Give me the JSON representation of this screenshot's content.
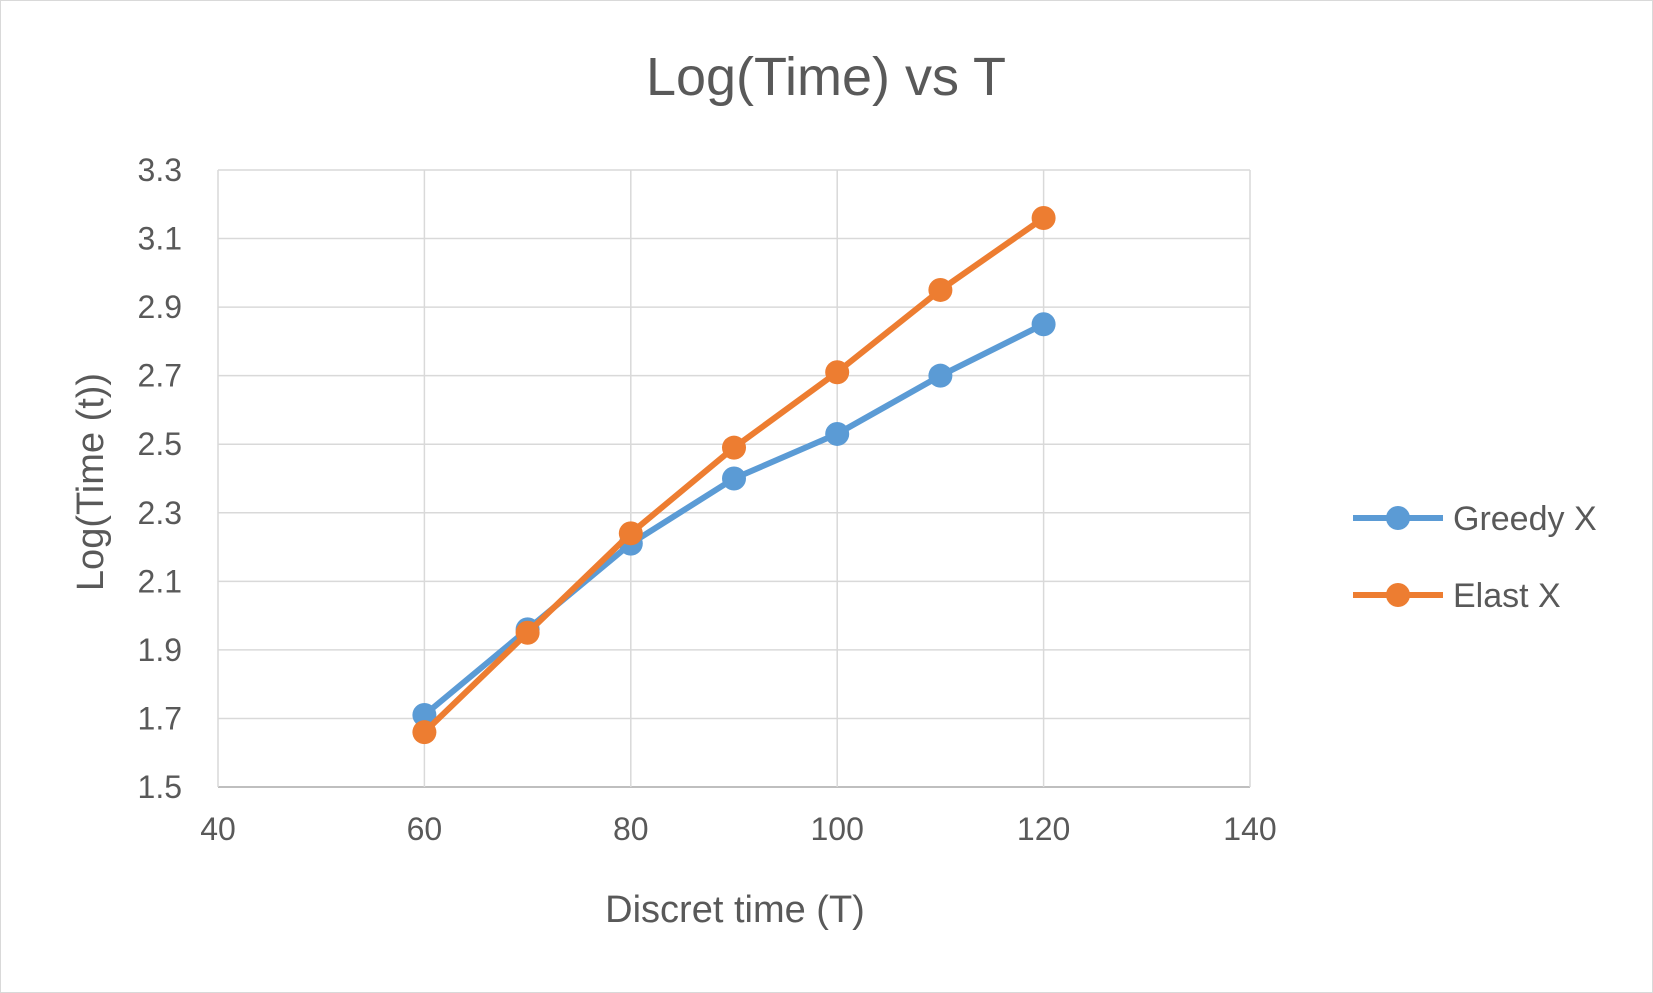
{
  "chart_data": {
    "type": "line",
    "title": "Log(Time) vs T",
    "xlabel": "Discret time (T)",
    "ylabel": "Log(Time (t))",
    "xlim": [
      40,
      140
    ],
    "ylim": [
      1.5,
      3.3
    ],
    "xticks": [
      40,
      60,
      80,
      100,
      120,
      140
    ],
    "yticks": [
      1.5,
      1.7,
      1.9,
      2.1,
      2.3,
      2.5,
      2.7,
      2.9,
      3.1,
      3.3
    ],
    "grid": true,
    "legend_position": "right",
    "series": [
      {
        "name": "Greedy X",
        "color": "#5b9bd5",
        "x": [
          60,
          70,
          80,
          90,
          100,
          110,
          120
        ],
        "y": [
          1.71,
          1.96,
          2.21,
          2.4,
          2.53,
          2.7,
          2.85
        ]
      },
      {
        "name": "Elast X",
        "color": "#ed7d31",
        "x": [
          60,
          70,
          80,
          90,
          100,
          110,
          120
        ],
        "y": [
          1.66,
          1.95,
          2.24,
          2.49,
          2.71,
          2.95,
          3.16
        ]
      }
    ]
  }
}
